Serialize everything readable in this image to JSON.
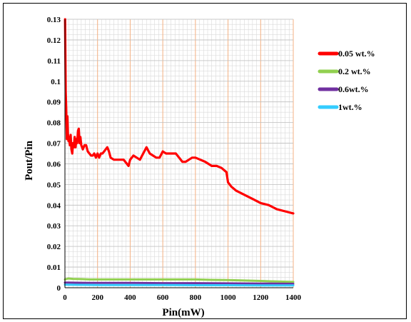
{
  "chart_data": {
    "type": "line",
    "xlabel": "Pin(mW)",
    "ylabel": "Pout/Pin",
    "xlim": [
      0,
      1400
    ],
    "ylim": [
      0,
      0.13
    ],
    "xticks": [
      0,
      200,
      400,
      600,
      800,
      1000,
      1200,
      1400
    ],
    "yticks": [
      0,
      0.01,
      0.02,
      0.03,
      0.04,
      0.05,
      0.06,
      0.07,
      0.08,
      0.09,
      0.1,
      0.11,
      0.12,
      0.13
    ],
    "xtick_labels": [
      "0",
      "200",
      "400",
      "600",
      "800",
      "1000",
      "1200",
      "1400"
    ],
    "ytick_labels": [
      "0",
      "0.01",
      "0.02",
      "0.03",
      "0.04",
      "0.05",
      "0.06",
      "0.07",
      "0.08",
      "0.09",
      "0.1",
      "0.11",
      "0.12",
      "0.13"
    ],
    "grid": true,
    "legend_position": "right",
    "series": [
      {
        "name": "0.05 wt.%",
        "color": "#ff0000",
        "x": [
          1,
          3,
          5,
          8,
          12,
          15,
          18,
          22,
          25,
          30,
          35,
          40,
          45,
          50,
          55,
          60,
          65,
          70,
          75,
          80,
          85,
          90,
          95,
          100,
          110,
          120,
          130,
          140,
          150,
          160,
          170,
          180,
          190,
          200,
          210,
          220,
          230,
          240,
          250,
          260,
          270,
          280,
          300,
          330,
          360,
          380,
          390,
          400,
          420,
          440,
          460,
          480,
          500,
          520,
          540,
          560,
          580,
          600,
          620,
          650,
          680,
          700,
          720,
          740,
          760,
          780,
          800,
          830,
          860,
          900,
          930,
          960,
          990,
          1000,
          1010,
          1020,
          1050,
          1100,
          1150,
          1200,
          1250,
          1300,
          1350,
          1400
        ],
        "y": [
          0.13,
          0.11,
          0.095,
          0.087,
          0.072,
          0.083,
          0.075,
          0.071,
          0.073,
          0.069,
          0.074,
          0.067,
          0.065,
          0.07,
          0.068,
          0.073,
          0.068,
          0.072,
          0.07,
          0.076,
          0.077,
          0.07,
          0.073,
          0.069,
          0.067,
          0.069,
          0.069,
          0.066,
          0.065,
          0.064,
          0.064,
          0.065,
          0.063,
          0.065,
          0.063,
          0.065,
          0.065,
          0.066,
          0.067,
          0.068,
          0.066,
          0.063,
          0.062,
          0.062,
          0.062,
          0.06,
          0.059,
          0.062,
          0.064,
          0.063,
          0.062,
          0.065,
          0.068,
          0.065,
          0.064,
          0.063,
          0.063,
          0.066,
          0.065,
          0.065,
          0.065,
          0.063,
          0.061,
          0.061,
          0.062,
          0.063,
          0.063,
          0.062,
          0.061,
          0.059,
          0.059,
          0.058,
          0.056,
          0.051,
          0.05,
          0.049,
          0.047,
          0.045,
          0.043,
          0.041,
          0.04,
          0.038,
          0.037,
          0.036
        ]
      },
      {
        "name": "0.2 wt.%",
        "color": "#92d050",
        "x": [
          0,
          20,
          50,
          100,
          150,
          200,
          300,
          400,
          500,
          600,
          700,
          800,
          900,
          1000,
          1100,
          1200,
          1300,
          1400
        ],
        "y": [
          0.004,
          0.0045,
          0.0043,
          0.0042,
          0.004,
          0.004,
          0.004,
          0.004,
          0.004,
          0.004,
          0.004,
          0.004,
          0.0038,
          0.0037,
          0.0035,
          0.0033,
          0.003,
          0.0028
        ]
      },
      {
        "name": "0.6wt.%",
        "color": "#7030a0",
        "x": [
          0,
          100,
          200,
          400,
          600,
          800,
          1000,
          1200,
          1400
        ],
        "y": [
          0.0025,
          0.0024,
          0.0023,
          0.0023,
          0.0022,
          0.0022,
          0.0021,
          0.002,
          0.0019
        ]
      },
      {
        "name": "1wt.%",
        "color": "#33ccff",
        "x": [
          0,
          100,
          200,
          400,
          600,
          800,
          1000,
          1200,
          1400
        ],
        "y": [
          0.0015,
          0.0014,
          0.0013,
          0.0013,
          0.0013,
          0.0012,
          0.0012,
          0.0011,
          0.0011
        ]
      }
    ]
  }
}
